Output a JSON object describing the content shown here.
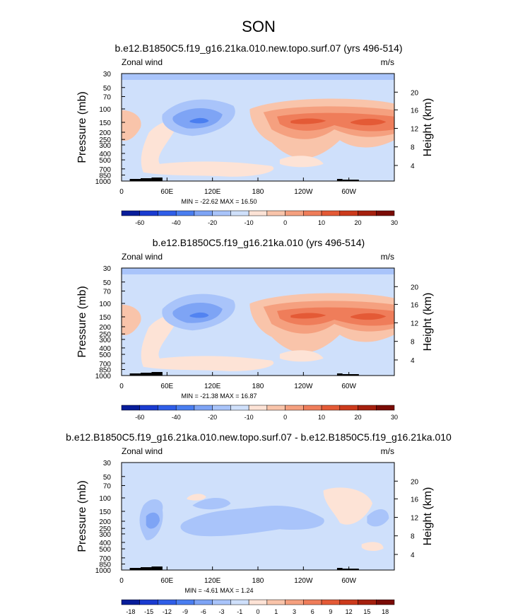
{
  "figure": {
    "season_title": "SON"
  },
  "chart_data": [
    {
      "type": "contour",
      "title": "b.e12.B1850C5.f19_g16.21ka.010.new.topo.surf.07 (yrs 496-514)",
      "left_label": "Zonal wind",
      "right_label": "m/s",
      "ylabel": "Pressure (mb)",
      "right_axis_label": "Height (km)",
      "x_ticks": [
        "0",
        "60E",
        "120E",
        "180",
        "120W",
        "60W"
      ],
      "pressure_ticks": [
        "30",
        "50",
        "70",
        "100",
        "150",
        "200",
        "250",
        "300",
        "400",
        "500",
        "700",
        "850",
        "1000"
      ],
      "height_ticks": [
        "20",
        "16",
        "12",
        "8",
        "4"
      ],
      "stats": "MIN = -22.62   MAX = 16.50",
      "min": -22.62,
      "max": 16.5,
      "colorbar_labels": [
        "-60",
        "-40",
        "-20",
        "-10",
        "0",
        "10",
        "20",
        "30"
      ],
      "colorbar_colors": [
        "#081d9a",
        "#1a3bd0",
        "#2f5ee8",
        "#4a7ef0",
        "#7ea4f5",
        "#a9c4fa",
        "#cfe0fb",
        "#fde3d6",
        "#f9c4aa",
        "#f5a07f",
        "#ef7d5a",
        "#e45a36",
        "#cc3a1c",
        "#a5200e",
        "#7a0b05"
      ]
    },
    {
      "type": "contour",
      "title": "b.e12.B1850C5.f19_g16.21ka.010 (yrs 496-514)",
      "left_label": "Zonal wind",
      "right_label": "m/s",
      "ylabel": "Pressure (mb)",
      "right_axis_label": "Height (km)",
      "x_ticks": [
        "0",
        "60E",
        "120E",
        "180",
        "120W",
        "60W"
      ],
      "pressure_ticks": [
        "30",
        "50",
        "70",
        "100",
        "150",
        "200",
        "250",
        "300",
        "400",
        "500",
        "700",
        "850",
        "1000"
      ],
      "height_ticks": [
        "20",
        "16",
        "12",
        "8",
        "4"
      ],
      "stats": "MIN = -21.38   MAX = 16.87",
      "min": -21.38,
      "max": 16.87,
      "colorbar_labels": [
        "-60",
        "-40",
        "-20",
        "-10",
        "0",
        "10",
        "20",
        "30"
      ],
      "colorbar_colors": [
        "#081d9a",
        "#1a3bd0",
        "#2f5ee8",
        "#4a7ef0",
        "#7ea4f5",
        "#a9c4fa",
        "#cfe0fb",
        "#fde3d6",
        "#f9c4aa",
        "#f5a07f",
        "#ef7d5a",
        "#e45a36",
        "#cc3a1c",
        "#a5200e",
        "#7a0b05"
      ]
    },
    {
      "type": "contour",
      "title": "b.e12.B1850C5.f19_g16.21ka.010.new.topo.surf.07 - b.e12.B1850C5.f19_g16.21ka.010",
      "left_label": "Zonal wind",
      "right_label": "m/s",
      "ylabel": "Pressure (mb)",
      "right_axis_label": "Height (km)",
      "x_ticks": [
        "0",
        "60E",
        "120E",
        "180",
        "120W",
        "60W"
      ],
      "pressure_ticks": [
        "30",
        "50",
        "70",
        "100",
        "150",
        "200",
        "250",
        "300",
        "400",
        "500",
        "700",
        "850",
        "1000"
      ],
      "height_ticks": [
        "20",
        "16",
        "12",
        "8",
        "4"
      ],
      "stats": "MIN = -4.61   MAX =  1.24",
      "min": -4.61,
      "max": 1.24,
      "colorbar_labels": [
        "-18",
        "-15",
        "-12",
        "-9",
        "-6",
        "-3",
        "-1",
        "0",
        "1",
        "3",
        "6",
        "9",
        "12",
        "15",
        "18"
      ],
      "colorbar_colors": [
        "#081d9a",
        "#1a3bd0",
        "#2f5ee8",
        "#4a7ef0",
        "#7ea4f5",
        "#a9c4fa",
        "#cfe0fb",
        "#fde3d6",
        "#f9c4aa",
        "#f5a07f",
        "#ef7d5a",
        "#e45a36",
        "#cc3a1c",
        "#a5200e",
        "#7a0b05"
      ]
    }
  ]
}
